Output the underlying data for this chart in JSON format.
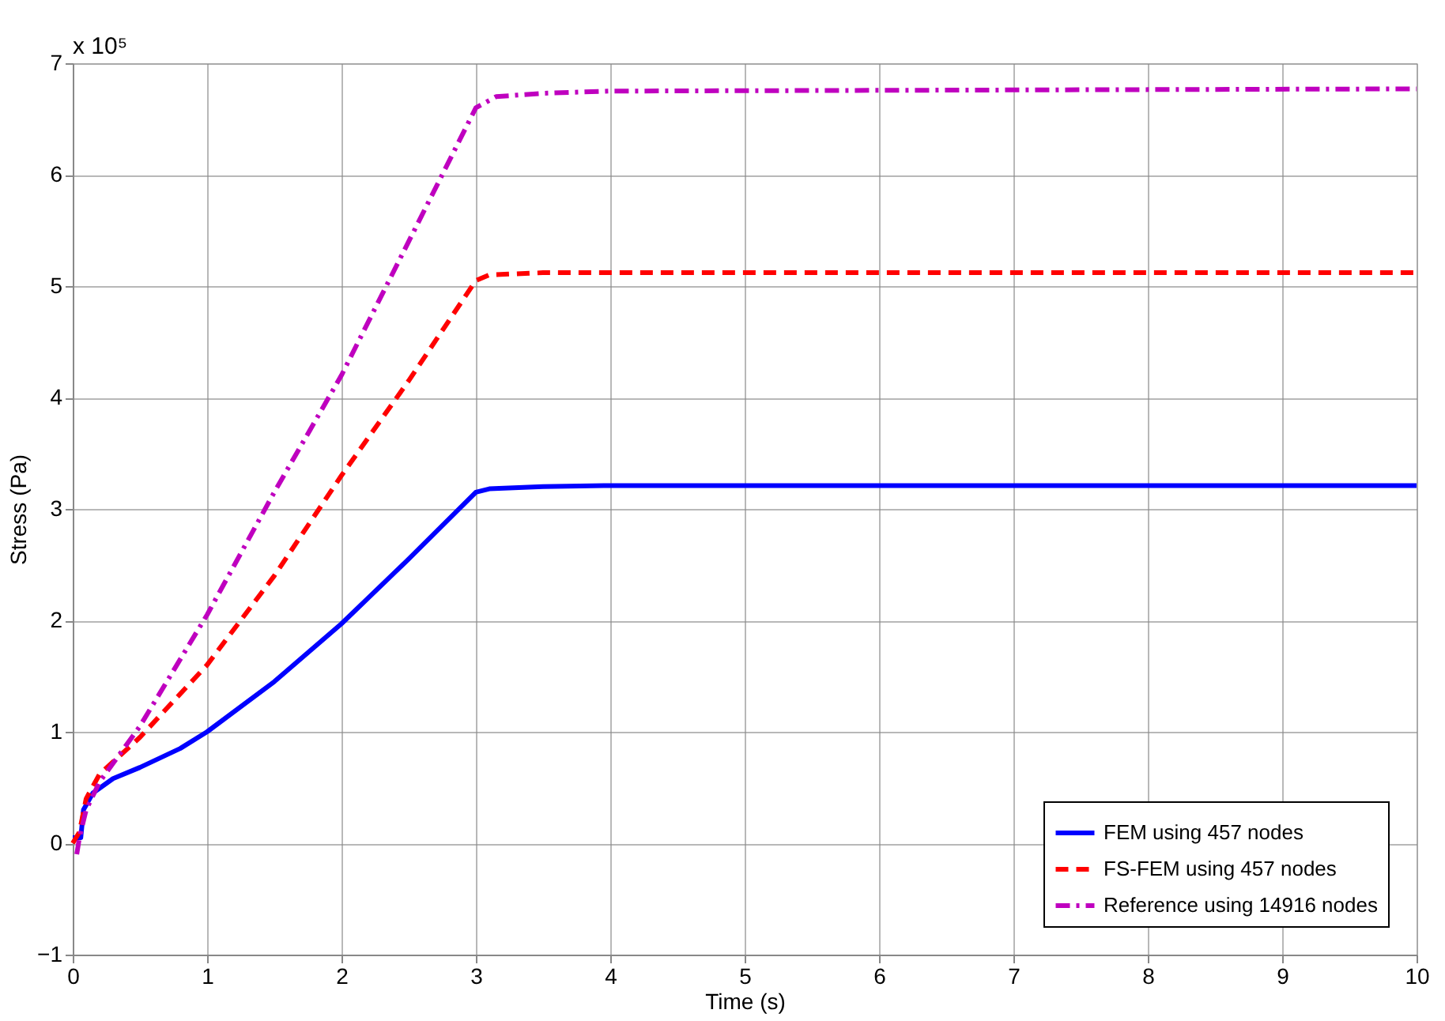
{
  "chart_data": {
    "type": "line",
    "xlabel": "Time (s)",
    "ylabel": "Stress (Pa)",
    "annotations": [
      "x 10⁵"
    ],
    "xlim": [
      0,
      10
    ],
    "ylim": [
      -1,
      7
    ],
    "xticks": [
      0,
      1,
      2,
      3,
      4,
      5,
      6,
      7,
      8,
      9,
      10
    ],
    "yticks": [
      -1,
      0,
      1,
      2,
      3,
      4,
      5,
      6,
      7
    ],
    "grid": true,
    "legend": "bottom right",
    "marker": "none",
    "series": [
      {
        "name": "FEM using 457 nodes",
        "color": "#0000ff",
        "line_style": "solid",
        "x": [
          0,
          0.03,
          0.06,
          0.08,
          0.15,
          0.3,
          0.5,
          0.8,
          1,
          1.5,
          2,
          2.5,
          3,
          3.1,
          3.5,
          4,
          10
        ],
        "values": [
          0.05,
          0.05,
          0.05,
          0.3,
          0.45,
          0.58,
          0.68,
          0.85,
          1.0,
          1.45,
          1.97,
          2.55,
          3.15,
          3.18,
          3.2,
          3.21,
          3.21
        ]
      },
      {
        "name": "FS-FEM using 457 nodes",
        "color": "#ff0000",
        "line_style": "dashed",
        "x": [
          0,
          0.05,
          0.1,
          0.2,
          0.5,
          1,
          1.5,
          2,
          2.5,
          3,
          3.1,
          3.5,
          10
        ],
        "values": [
          0,
          0.1,
          0.4,
          0.62,
          0.95,
          1.6,
          2.4,
          3.3,
          4.15,
          5.05,
          5.1,
          5.12,
          5.12
        ]
      },
      {
        "name": "Reference using 14916 nodes",
        "color": "#bf00bf",
        "line_style": "dashdot",
        "x": [
          0.03,
          0.05,
          0.1,
          0.2,
          0.5,
          1,
          1.5,
          2,
          2.5,
          3,
          3.15,
          3.5,
          4,
          10
        ],
        "values": [
          -0.1,
          0.05,
          0.3,
          0.55,
          1.05,
          2.05,
          3.15,
          4.2,
          5.4,
          6.6,
          6.7,
          6.73,
          6.75,
          6.77
        ]
      }
    ]
  }
}
